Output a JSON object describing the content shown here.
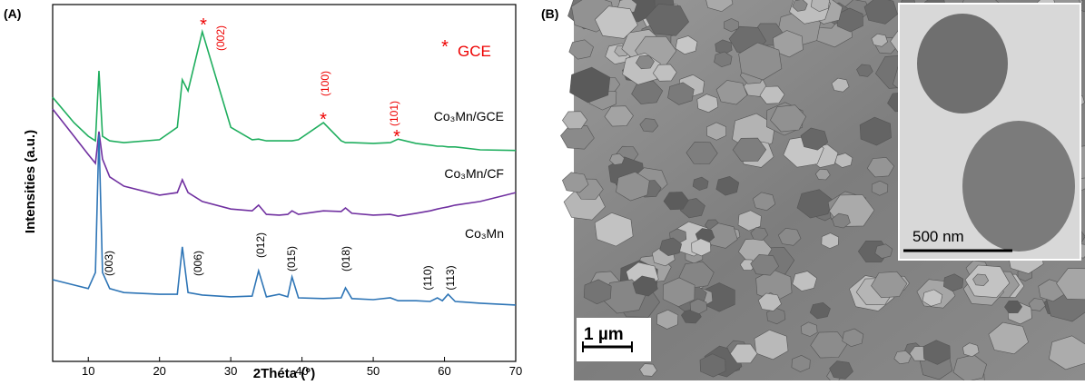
{
  "chart_data": {
    "type": "line",
    "panel_labels": [
      "(A)",
      "(B)"
    ],
    "x_label": "2Théta (°)",
    "y_label": "Intensities (a.u.)",
    "xlim": [
      5,
      70
    ],
    "xticks": [
      10,
      20,
      30,
      40,
      50,
      60,
      70
    ],
    "ylim": [
      0,
      100
    ],
    "x": [
      5,
      8,
      10,
      11,
      11.5,
      12,
      13,
      15,
      20,
      22.5,
      23.2,
      24,
      26,
      30,
      33,
      33.9,
      35,
      36.8,
      38,
      38.6,
      39.5,
      43,
      45.5,
      46.1,
      47,
      50,
      52.4,
      53.5,
      56,
      58,
      59,
      59.7,
      60.5,
      61.5,
      65,
      70
    ],
    "series": [
      {
        "name": "Co₃Mn/GCE",
        "color": "#1fae5e",
        "values": [
          74.0,
          66.9,
          63.1,
          61.8,
          81.4,
          63.1,
          61.8,
          61.3,
          62.1,
          65.6,
          78.9,
          75.8,
          92.4,
          65.6,
          62.1,
          62.3,
          61.8,
          61.8,
          61.8,
          61.8,
          62.1,
          66.9,
          61.8,
          61.3,
          61.3,
          61.1,
          61.3,
          62.3,
          61.1,
          60.6,
          60.3,
          60.3,
          60.1,
          60.1,
          59.3,
          59.1
        ]
      },
      {
        "name": "Co₃Mn/CF",
        "color": "#7030a0",
        "values": [
          70.7,
          63.1,
          58.0,
          55.5,
          64.4,
          56.7,
          51.7,
          49.1,
          46.6,
          47.3,
          50.9,
          47.3,
          44.8,
          42.7,
          42.2,
          43.8,
          41.2,
          41.0,
          41.2,
          42.2,
          41.2,
          42.2,
          42.0,
          43.0,
          41.5,
          41.0,
          41.2,
          40.7,
          41.5,
          42.2,
          42.7,
          43.0,
          43.3,
          43.8,
          44.8,
          47.3
        ]
      },
      {
        "name": "Co₃Mn",
        "color": "#2e75b6",
        "values": [
          22.9,
          21.4,
          20.4,
          24.9,
          63.6,
          24.9,
          20.4,
          19.3,
          18.8,
          18.8,
          32.1,
          19.3,
          18.6,
          18.1,
          18.3,
          25.4,
          18.1,
          18.8,
          18.1,
          23.7,
          17.8,
          17.6,
          17.8,
          20.6,
          17.6,
          17.3,
          17.8,
          17.0,
          17.0,
          16.8,
          17.8,
          17.0,
          18.8,
          16.8,
          16.3,
          15.8
        ]
      }
    ],
    "peak_labels": [
      "(003)",
      "(006)",
      "(012)",
      "(015)",
      "(018)",
      "(110)",
      "(113)"
    ],
    "gce_peak_labels": [
      "(002)",
      "(100)",
      "(101)"
    ],
    "gce_marker": "*",
    "gce_legend": "GCE",
    "scale_bars": [
      "1 µm",
      "500 nm"
    ]
  }
}
